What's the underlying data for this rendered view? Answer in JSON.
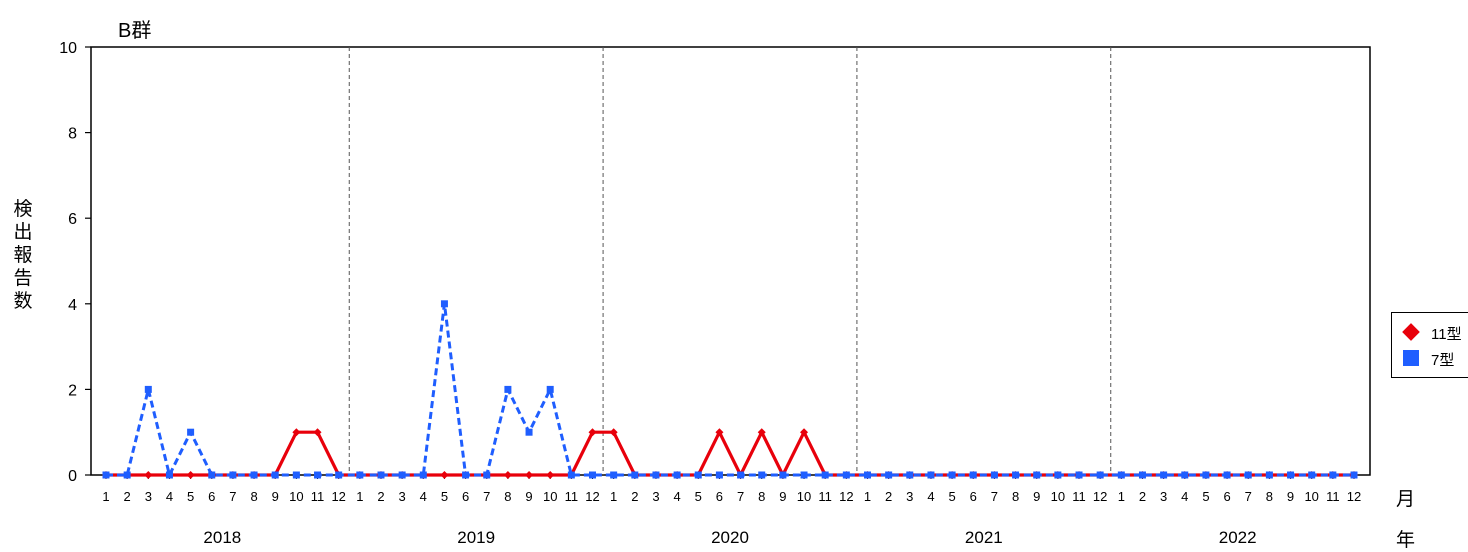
{
  "chart_data": {
    "type": "line",
    "title": "B群",
    "ylabel": "検出報告数",
    "xlabel_month": "月",
    "xlabel_year": "年",
    "ylim": [
      0,
      10
    ],
    "yticks": [
      "0",
      "2",
      "4",
      "6",
      "8",
      "10"
    ],
    "months": [
      "1",
      "2",
      "3",
      "4",
      "5",
      "6",
      "7",
      "8",
      "9",
      "10",
      "11",
      "12"
    ],
    "years": [
      "2018",
      "2019",
      "2020",
      "2021",
      "2022"
    ],
    "grid": "dashed vertical year separators",
    "legend_position": "right",
    "series": [
      {
        "name": "11型",
        "color": "#e8000b",
        "marker": "diamond",
        "line": "solid",
        "values": [
          0,
          0,
          0,
          0,
          0,
          0,
          0,
          0,
          0,
          1,
          1,
          0,
          0,
          0,
          0,
          0,
          0,
          0,
          0,
          0,
          0,
          0,
          0,
          1,
          1,
          0,
          0,
          0,
          0,
          1,
          0,
          1,
          0,
          1,
          0,
          0,
          0,
          0,
          0,
          0,
          0,
          0,
          0,
          0,
          0,
          0,
          0,
          0,
          0,
          0,
          0,
          0,
          0,
          0,
          0,
          0,
          0,
          0,
          0,
          0
        ]
      },
      {
        "name": "7型",
        "color": "#1f5eff",
        "marker": "square",
        "line": "dashed",
        "values": [
          0,
          0,
          2,
          0,
          1,
          0,
          0,
          0,
          0,
          0,
          0,
          0,
          0,
          0,
          0,
          0,
          4,
          0,
          0,
          2,
          1,
          2,
          0,
          0,
          0,
          0,
          0,
          0,
          0,
          0,
          0,
          0,
          0,
          0,
          0,
          0,
          0,
          0,
          0,
          0,
          0,
          0,
          0,
          0,
          0,
          0,
          0,
          0,
          0,
          0,
          0,
          0,
          0,
          0,
          0,
          0,
          0,
          0,
          0,
          0
        ]
      }
    ]
  }
}
